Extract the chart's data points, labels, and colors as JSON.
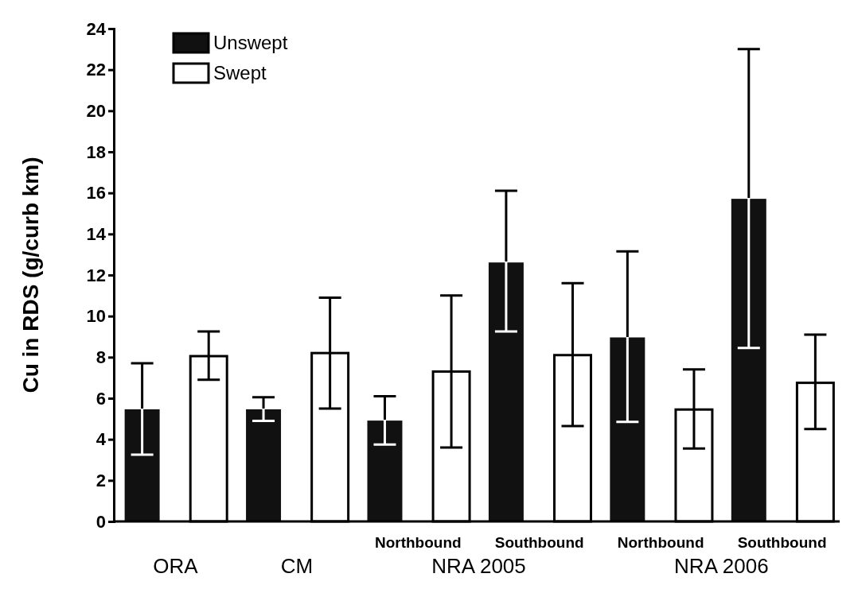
{
  "chart_data": {
    "type": "bar",
    "ylabel": "Cu in RDS (g/curb km)",
    "categories": [
      "ORA",
      "CM",
      "Northbound",
      "Southbound",
      "Northbound",
      "Southbound"
    ],
    "series": [
      {
        "name": "Unswept",
        "color": "#111111",
        "values": [
          5.5,
          5.5,
          4.95,
          12.65,
          9.0,
          15.75
        ],
        "errors": [
          [
            3.25,
            7.7
          ],
          [
            4.9,
            6.05
          ],
          [
            3.75,
            6.1
          ],
          [
            9.25,
            16.1
          ],
          [
            4.85,
            13.15
          ],
          [
            8.45,
            23.0
          ]
        ]
      },
      {
        "name": "Swept",
        "color": "#ffffff",
        "values": [
          8.05,
          8.2,
          7.3,
          8.1,
          5.45,
          6.75
        ],
        "errors": [
          [
            6.9,
            9.25
          ],
          [
            5.5,
            10.9
          ],
          [
            3.6,
            11.0
          ],
          [
            4.65,
            11.6
          ],
          [
            3.55,
            7.4
          ],
          [
            4.5,
            9.1
          ]
        ]
      }
    ],
    "annotations": [
      "NRA 2005",
      "NRA 2006"
    ],
    "ylim": [
      0,
      24
    ],
    "yticks": [
      0,
      2,
      4,
      6,
      8,
      10,
      12,
      14,
      16,
      18,
      20,
      22,
      24
    ],
    "grid": false,
    "legend": "top left"
  }
}
